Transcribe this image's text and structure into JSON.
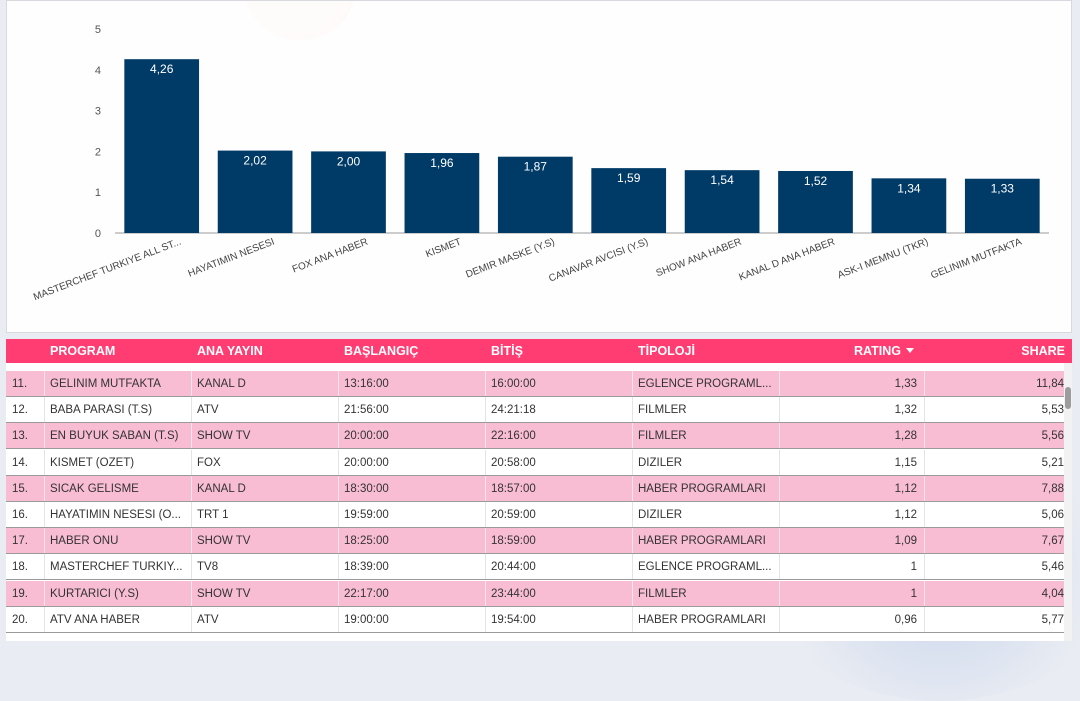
{
  "chart_data": {
    "type": "bar",
    "categories": [
      "MASTERCHEF TURKIYE ALL ST...",
      "HAYATIMIN NESESI",
      "FOX ANA HABER",
      "KISMET",
      "DEMIR MASKE (Y.S)",
      "CANAVAR AVCISI (Y.S)",
      "SHOW ANA HABER",
      "KANAL D ANA HABER",
      "ASK-I MEMNU (TKR)",
      "GELINIM MUTFAKTA"
    ],
    "values": [
      4.26,
      2.02,
      2.0,
      1.96,
      1.87,
      1.59,
      1.54,
      1.52,
      1.34,
      1.33
    ],
    "value_labels": [
      "4,26",
      "2,02",
      "2,00",
      "1,96",
      "1,87",
      "1,59",
      "1,54",
      "1,52",
      "1,34",
      "1,33"
    ],
    "y_ticks": [
      "0",
      "1",
      "2",
      "3",
      "4",
      "5"
    ],
    "ylim": [
      0,
      5
    ],
    "bar_color": "#003a66",
    "grid": false
  },
  "table": {
    "headers": {
      "program": "PROGRAM",
      "ana_yayin": "ANA YAYIN",
      "baslangic": "BAŞLANGIÇ",
      "bitis": "BİTİŞ",
      "tipoloji": "TİPOLOJİ",
      "rating": "RATING",
      "share": "SHARE"
    },
    "sort_icon": "sort-descending-icon",
    "header_color": "#ff3d73",
    "row_pink_color": "#f8bcd3",
    "rows": [
      {
        "no": "11.",
        "program": "GELINIM MUTFAKTA",
        "ana_yayin": "KANAL D",
        "baslangic": "13:16:00",
        "bitis": "16:00:00",
        "tipoloji": "EGLENCE PROGRAML...",
        "rating": "1,33",
        "share": "11,84"
      },
      {
        "no": "12.",
        "program": "BABA PARASI (T.S)",
        "ana_yayin": "ATV",
        "baslangic": "21:56:00",
        "bitis": "24:21:18",
        "tipoloji": "FILMLER",
        "rating": "1,32",
        "share": "5,53"
      },
      {
        "no": "13.",
        "program": "EN BUYUK SABAN (T.S)",
        "ana_yayin": "SHOW TV",
        "baslangic": "20:00:00",
        "bitis": "22:16:00",
        "tipoloji": "FILMLER",
        "rating": "1,28",
        "share": "5,56"
      },
      {
        "no": "14.",
        "program": "KISMET (OZET)",
        "ana_yayin": "FOX",
        "baslangic": "20:00:00",
        "bitis": "20:58:00",
        "tipoloji": "DIZILER",
        "rating": "1,15",
        "share": "5,21"
      },
      {
        "no": "15.",
        "program": "SICAK GELISME",
        "ana_yayin": "KANAL D",
        "baslangic": "18:30:00",
        "bitis": "18:57:00",
        "tipoloji": "HABER PROGRAMLARI",
        "rating": "1,12",
        "share": "7,88"
      },
      {
        "no": "16.",
        "program": "HAYATIMIN NESESI (O...",
        "ana_yayin": "TRT 1",
        "baslangic": "19:59:00",
        "bitis": "20:59:00",
        "tipoloji": "DIZILER",
        "rating": "1,12",
        "share": "5,06"
      },
      {
        "no": "17.",
        "program": "HABER ONU",
        "ana_yayin": "SHOW TV",
        "baslangic": "18:25:00",
        "bitis": "18:59:00",
        "tipoloji": "HABER PROGRAMLARI",
        "rating": "1,09",
        "share": "7,67"
      },
      {
        "no": "18.",
        "program": "MASTERCHEF TURKIY...",
        "ana_yayin": "TV8",
        "baslangic": "18:39:00",
        "bitis": "20:44:00",
        "tipoloji": "EGLENCE PROGRAML...",
        "rating": "1",
        "share": "5,46"
      },
      {
        "no": "19.",
        "program": "KURTARICI (Y.S)",
        "ana_yayin": "SHOW TV",
        "baslangic": "22:17:00",
        "bitis": "23:44:00",
        "tipoloji": "FILMLER",
        "rating": "1",
        "share": "4,04"
      },
      {
        "no": "20.",
        "program": "ATV ANA HABER",
        "ana_yayin": "ATV",
        "baslangic": "19:00:00",
        "bitis": "19:54:00",
        "tipoloji": "HABER PROGRAMLARI",
        "rating": "0,96",
        "share": "5,77"
      }
    ]
  }
}
